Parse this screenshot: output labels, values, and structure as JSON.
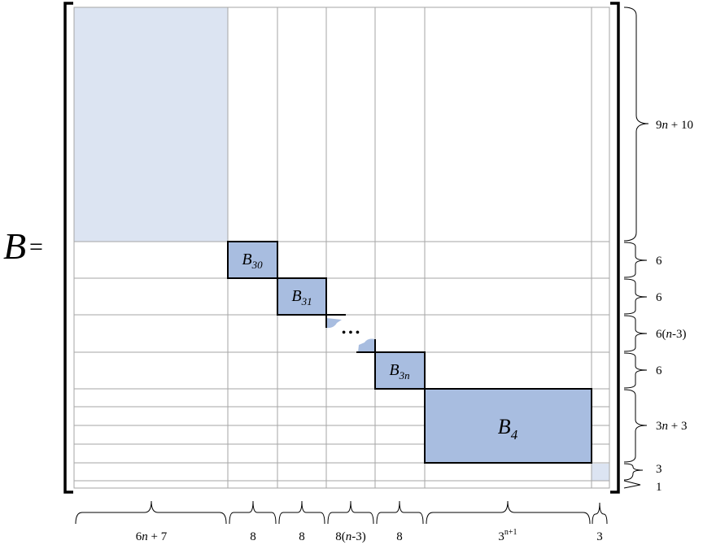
{
  "matrix": {
    "name": "B",
    "equals": "="
  },
  "blocks": [
    {
      "base": "B",
      "sub": "30"
    },
    {
      "base": "B",
      "sub": "31"
    },
    {
      "base": "B",
      "sub": "3n"
    },
    {
      "base": "B",
      "sub": "4"
    }
  ],
  "ellipsis": "• • •",
  "row_dims": [
    {
      "pre": "9",
      "var": "n",
      "post": " + 10"
    },
    {
      "pre": "6",
      "var": "",
      "post": ""
    },
    {
      "pre": "6",
      "var": "",
      "post": ""
    },
    {
      "pre": "6(",
      "var": "n",
      "post": "-3)"
    },
    {
      "pre": "6",
      "var": "",
      "post": ""
    },
    {
      "pre": "3",
      "var": "n",
      "post": " + 3"
    },
    {
      "pre": "3",
      "var": "",
      "post": ""
    },
    {
      "pre": "1",
      "var": "",
      "post": ""
    }
  ],
  "col_dims": [
    {
      "pre": "6",
      "var": "n",
      "post": " + 7"
    },
    {
      "pre": "8",
      "var": "",
      "post": ""
    },
    {
      "pre": "8",
      "var": "",
      "post": ""
    },
    {
      "pre": "8(",
      "var": "n",
      "post": "-3)"
    },
    {
      "pre": "8",
      "var": "",
      "post": ""
    },
    {
      "pre": "3",
      "var": "",
      "post": "",
      "sup": "n+1"
    },
    {
      "pre": "3",
      "var": "",
      "post": ""
    }
  ],
  "colors": {
    "light_fill": "#dce4f2",
    "block_fill": "#a8bde0",
    "grid_line": "#a6a6a6",
    "outline": "#000000"
  }
}
